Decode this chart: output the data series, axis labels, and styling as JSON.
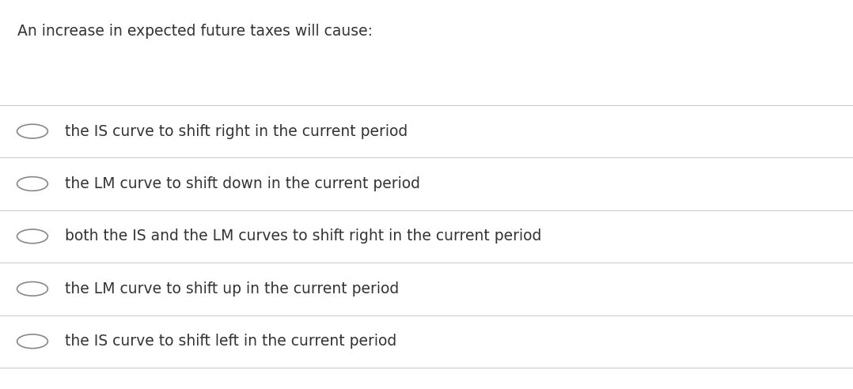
{
  "question": "An increase in expected future taxes will cause:",
  "options": [
    "the IS curve to shift right in the current period",
    "the LM curve to shift down in the current period",
    "both the IS and the LM curves to shift right in the current period",
    "the LM curve to shift up in the current period",
    "the IS curve to shift left in the current period"
  ],
  "background_color": "#ffffff",
  "text_color": "#333333",
  "line_color": "#cccccc",
  "question_fontsize": 13.5,
  "option_fontsize": 13.5,
  "circle_color": "#ffffff",
  "circle_edge_color": "#888888"
}
